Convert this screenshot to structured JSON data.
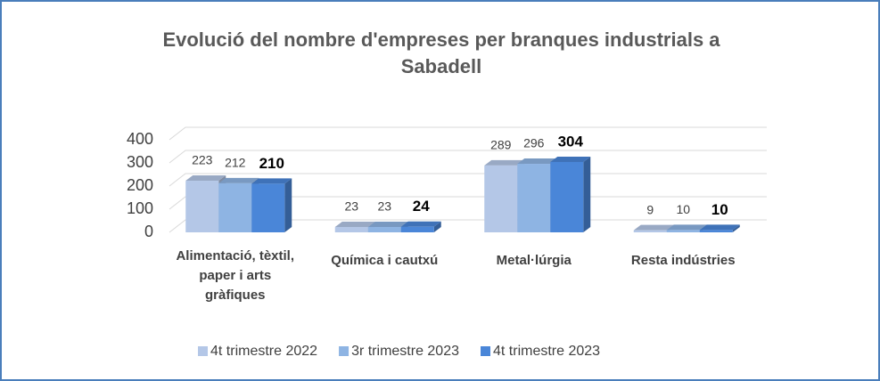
{
  "chart_data": {
    "type": "bar3d",
    "title": "Evolució del nombre d'empreses per branques industrials a Sabadell",
    "categories": [
      "Alimentació, tèxtil, paper i arts gràfiques",
      "Química i cautxú",
      "Metal·lúrgia",
      "Resta indústries"
    ],
    "series": [
      {
        "name": "4t trimestre 2022",
        "color": "#b4c7e7",
        "values": [
          223,
          23,
          289,
          9
        ]
      },
      {
        "name": "3r trimestre 2023",
        "color": "#8eb4e3",
        "values": [
          212,
          23,
          296,
          10
        ]
      },
      {
        "name": "4t trimestre 2023",
        "color": "#4a86d8",
        "values": [
          210,
          24,
          304,
          10
        ]
      }
    ],
    "ylim": [
      0,
      400
    ],
    "yticks": [
      0,
      100,
      200,
      300,
      400
    ],
    "grid": true,
    "legend": "bottom"
  }
}
